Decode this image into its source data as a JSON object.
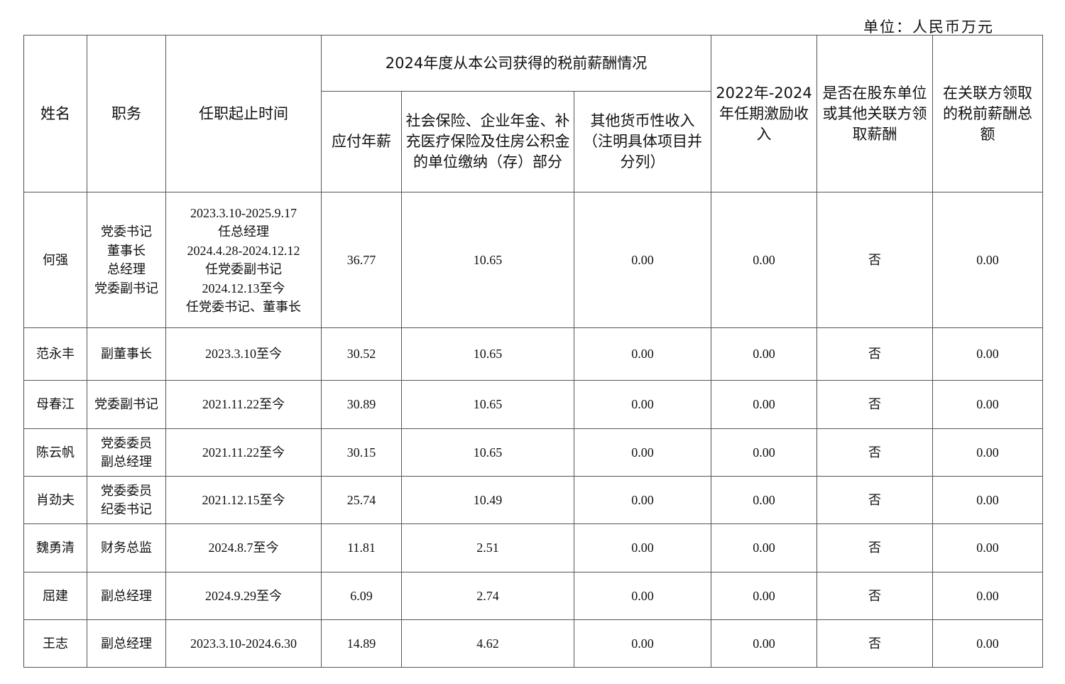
{
  "unit_label": "单位：人民币万元",
  "headers": {
    "name": "姓名",
    "position": "职务",
    "term": "任职起止时间",
    "group": "2024年度从本公司获得的税前薪酬情况",
    "annual_salary": "应付年薪",
    "social_insurance": "社会保险、企业年金、补充医疗保险及住房公积金的单位缴纳（存）部分",
    "other_income": "其他货币性收入（注明具体项目并分列）",
    "incentive": "2022年-2024年任期激励收入",
    "related_party_flag": "是否在股东单位或其他关联方领取薪酬",
    "related_party_total": "在关联方领取的税前薪酬总额"
  },
  "rows": [
    {
      "name": "何强",
      "position": "党委书记\n董事长\n总经理\n党委副书记",
      "term": "2023.3.10-2025.9.17\n任总经理\n2024.4.28-2024.12.12\n任党委副书记\n2024.12.13至今\n任党委书记、董事长",
      "annual_salary": "36.77",
      "social_insurance": "10.65",
      "other_income": "0.00",
      "incentive": "0.00",
      "related_party_flag": "否",
      "related_party_total": "0.00"
    },
    {
      "name": "范永丰",
      "position": "副董事长",
      "term": "2023.3.10至今",
      "annual_salary": "30.52",
      "social_insurance": "10.65",
      "other_income": "0.00",
      "incentive": "0.00",
      "related_party_flag": "否",
      "related_party_total": "0.00"
    },
    {
      "name": "母春江",
      "position": "党委副书记",
      "term": "2021.11.22至今",
      "annual_salary": "30.89",
      "social_insurance": "10.65",
      "other_income": "0.00",
      "incentive": "0.00",
      "related_party_flag": "否",
      "related_party_total": "0.00"
    },
    {
      "name": "陈云帆",
      "position": "党委委员\n副总经理",
      "term": "2021.11.22至今",
      "annual_salary": "30.15",
      "social_insurance": "10.65",
      "other_income": "0.00",
      "incentive": "0.00",
      "related_party_flag": "否",
      "related_party_total": "0.00"
    },
    {
      "name": "肖劲夫",
      "position": "党委委员\n纪委书记",
      "term": "2021.12.15至今",
      "annual_salary": "25.74",
      "social_insurance": "10.49",
      "other_income": "0.00",
      "incentive": "0.00",
      "related_party_flag": "否",
      "related_party_total": "0.00"
    },
    {
      "name": "魏勇清",
      "position": "财务总监",
      "term": "2024.8.7至今",
      "annual_salary": "11.81",
      "social_insurance": "2.51",
      "other_income": "0.00",
      "incentive": "0.00",
      "related_party_flag": "否",
      "related_party_total": "0.00"
    },
    {
      "name": "屈建",
      "position": "副总经理",
      "term": "2024.9.29至今",
      "annual_salary": "6.09",
      "social_insurance": "2.74",
      "other_income": "0.00",
      "incentive": "0.00",
      "related_party_flag": "否",
      "related_party_total": "0.00"
    },
    {
      "name": "王志",
      "position": "副总经理",
      "term": "2023.3.10-2024.6.30",
      "annual_salary": "14.89",
      "social_insurance": "4.62",
      "other_income": "0.00",
      "incentive": "0.00",
      "related_party_flag": "否",
      "related_party_total": "0.00"
    }
  ]
}
